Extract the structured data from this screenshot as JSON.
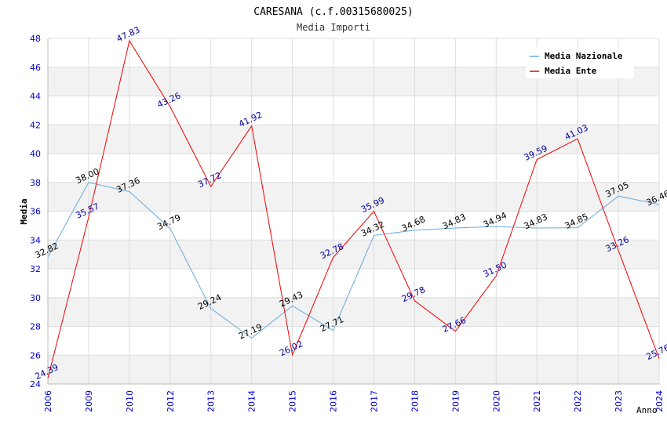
{
  "chart_data": {
    "type": "line",
    "title": "CARESANA (c.f.00315680025)",
    "subtitle": "Media Importi",
    "xlabel": "Anno",
    "ylabel": "Media",
    "categories": [
      "2006",
      "2009",
      "2010",
      "2012",
      "2013",
      "2014",
      "2015",
      "2016",
      "2017",
      "2018",
      "2019",
      "2020",
      "2021",
      "2022",
      "2023",
      "2024"
    ],
    "ylim": [
      24,
      48
    ],
    "yticks": [
      "24",
      "26",
      "28",
      "30",
      "32",
      "34",
      "36",
      "38",
      "40",
      "42",
      "44",
      "46",
      "48"
    ],
    "grid": true,
    "legend_position": "top-right",
    "series": [
      {
        "name": "Media Nazionale",
        "color": "#66aadd",
        "label_color": "#000000",
        "values": [
          32.82,
          38.0,
          37.36,
          34.79,
          29.24,
          27.19,
          29.43,
          27.71,
          34.32,
          34.68,
          34.83,
          34.94,
          34.83,
          34.85,
          37.05,
          36.46
        ],
        "labels": [
          "32.82",
          "38.00",
          "37.36",
          "34.79",
          "29.24",
          "27.19",
          "29.43",
          "27.71",
          "34.32",
          "34.68",
          "34.83",
          "34.94",
          "34.83",
          "34.85",
          "37.05",
          "36.46"
        ]
      },
      {
        "name": "Media Ente",
        "color": "#ee0000",
        "label_color": "#000099",
        "values": [
          24.39,
          35.57,
          47.83,
          43.26,
          37.72,
          41.92,
          26.02,
          32.78,
          35.99,
          29.78,
          27.66,
          31.5,
          39.59,
          41.03,
          33.26,
          25.76
        ],
        "labels": [
          "24.39",
          "35.57",
          "47.83",
          "43.26",
          "37.72",
          "41.92",
          "26.02",
          "32.78",
          "35.99",
          "29.78",
          "27.66",
          "31.50",
          "39.59",
          "41.03",
          "33.26",
          "25.76"
        ]
      }
    ]
  },
  "colors": {
    "axis_tick_text": "#0000cc",
    "band": "#f2f2f2",
    "grid": "#dddddd"
  }
}
